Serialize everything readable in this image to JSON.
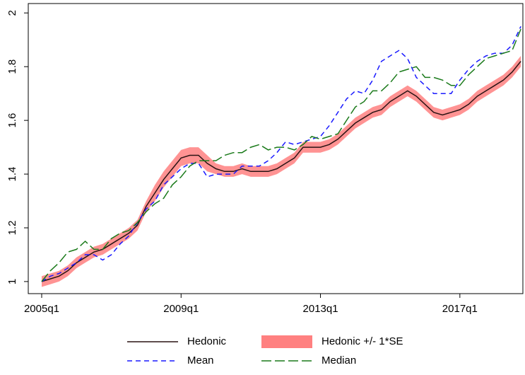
{
  "chart_data": {
    "type": "line",
    "categories": [
      "2005q1",
      null,
      null,
      null,
      null,
      null,
      null,
      null,
      null,
      null,
      null,
      null,
      null,
      null,
      null,
      null,
      "2009q1",
      null,
      null,
      null,
      null,
      null,
      null,
      null,
      null,
      null,
      null,
      null,
      null,
      null,
      null,
      null,
      "2013q1",
      null,
      null,
      null,
      null,
      null,
      null,
      null,
      null,
      null,
      null,
      null,
      null,
      null,
      null,
      null,
      "2017q1",
      null,
      null,
      null,
      null,
      null,
      null,
      null
    ],
    "ylim": [
      0.955,
      2.035
    ],
    "yticks": [
      1,
      1.2,
      1.4,
      1.6,
      1.8,
      2
    ],
    "grid": false,
    "series": [
      {
        "name": "Hedonic",
        "color": "#2a1414",
        "values": [
          1.0,
          1.01,
          1.02,
          1.04,
          1.07,
          1.09,
          1.11,
          1.12,
          1.14,
          1.16,
          1.18,
          1.21,
          1.28,
          1.33,
          1.38,
          1.42,
          1.46,
          1.47,
          1.47,
          1.44,
          1.42,
          1.41,
          1.41,
          1.42,
          1.41,
          1.41,
          1.41,
          1.42,
          1.44,
          1.46,
          1.5,
          1.5,
          1.5,
          1.51,
          1.53,
          1.56,
          1.59,
          1.61,
          1.63,
          1.64,
          1.67,
          1.69,
          1.71,
          1.69,
          1.66,
          1.63,
          1.62,
          1.63,
          1.64,
          1.66,
          1.69,
          1.71,
          1.73,
          1.75,
          1.78,
          1.82
        ]
      },
      {
        "name": "Hedonic +/- 1*SE",
        "color": "#ff8080",
        "upper": [
          1.02,
          1.03,
          1.04,
          1.06,
          1.09,
          1.11,
          1.13,
          1.14,
          1.16,
          1.18,
          1.2,
          1.23,
          1.3,
          1.36,
          1.41,
          1.45,
          1.49,
          1.5,
          1.5,
          1.47,
          1.44,
          1.43,
          1.43,
          1.44,
          1.43,
          1.43,
          1.43,
          1.44,
          1.46,
          1.48,
          1.52,
          1.52,
          1.52,
          1.53,
          1.55,
          1.58,
          1.61,
          1.63,
          1.65,
          1.66,
          1.69,
          1.71,
          1.73,
          1.71,
          1.68,
          1.65,
          1.64,
          1.65,
          1.66,
          1.68,
          1.71,
          1.73,
          1.75,
          1.77,
          1.8,
          1.84
        ],
        "lower": [
          0.98,
          0.99,
          1.0,
          1.02,
          1.05,
          1.07,
          1.09,
          1.1,
          1.12,
          1.14,
          1.16,
          1.19,
          1.26,
          1.3,
          1.35,
          1.39,
          1.43,
          1.44,
          1.44,
          1.41,
          1.4,
          1.39,
          1.39,
          1.4,
          1.39,
          1.39,
          1.39,
          1.4,
          1.42,
          1.44,
          1.48,
          1.48,
          1.48,
          1.49,
          1.51,
          1.54,
          1.57,
          1.59,
          1.61,
          1.62,
          1.65,
          1.67,
          1.69,
          1.67,
          1.64,
          1.61,
          1.6,
          1.61,
          1.62,
          1.64,
          1.67,
          1.69,
          1.71,
          1.73,
          1.76,
          1.8
        ]
      },
      {
        "name": "Mean",
        "color": "#1a1aff",
        "dash": "7 5",
        "values": [
          1.0,
          1.02,
          1.03,
          1.05,
          1.07,
          1.1,
          1.1,
          1.08,
          1.1,
          1.14,
          1.17,
          1.22,
          1.27,
          1.3,
          1.36,
          1.39,
          1.42,
          1.44,
          1.44,
          1.39,
          1.4,
          1.4,
          1.4,
          1.43,
          1.43,
          1.43,
          1.45,
          1.48,
          1.52,
          1.51,
          1.52,
          1.53,
          1.54,
          1.58,
          1.63,
          1.68,
          1.71,
          1.7,
          1.75,
          1.82,
          1.84,
          1.86,
          1.83,
          1.76,
          1.73,
          1.7,
          1.7,
          1.7,
          1.75,
          1.79,
          1.82,
          1.84,
          1.85,
          1.85,
          1.88,
          1.95
        ]
      },
      {
        "name": "Median",
        "color": "#1a7a1a",
        "dash": "14 5",
        "values": [
          1.0,
          1.04,
          1.07,
          1.11,
          1.12,
          1.15,
          1.12,
          1.12,
          1.16,
          1.18,
          1.19,
          1.22,
          1.26,
          1.29,
          1.31,
          1.36,
          1.39,
          1.43,
          1.45,
          1.45,
          1.45,
          1.47,
          1.48,
          1.48,
          1.5,
          1.51,
          1.49,
          1.5,
          1.5,
          1.49,
          1.51,
          1.54,
          1.53,
          1.54,
          1.55,
          1.6,
          1.65,
          1.67,
          1.71,
          1.71,
          1.74,
          1.78,
          1.79,
          1.8,
          1.76,
          1.76,
          1.75,
          1.73,
          1.73,
          1.77,
          1.8,
          1.83,
          1.84,
          1.85,
          1.86,
          1.94
        ]
      }
    ]
  }
}
